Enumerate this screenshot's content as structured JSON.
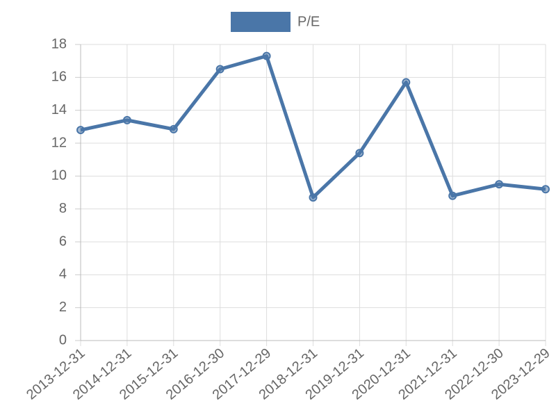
{
  "chart_data": {
    "type": "line",
    "categories": [
      "2013-12-31",
      "2014-12-31",
      "2015-12-31",
      "2016-12-30",
      "2017-12-29",
      "2018-12-31",
      "2019-12-31",
      "2020-12-31",
      "2021-12-31",
      "2022-12-30",
      "2023-12-29"
    ],
    "series": [
      {
        "name": "P/E",
        "color": "#4a76a8",
        "values": [
          12.8,
          13.4,
          12.85,
          16.5,
          17.3,
          8.7,
          11.4,
          15.7,
          8.8,
          9.5,
          9.2
        ]
      }
    ],
    "ylim": [
      0,
      18
    ],
    "yticks": [
      0,
      2,
      4,
      6,
      8,
      10,
      12,
      14,
      16,
      18
    ],
    "grid": true,
    "legend": "top"
  }
}
